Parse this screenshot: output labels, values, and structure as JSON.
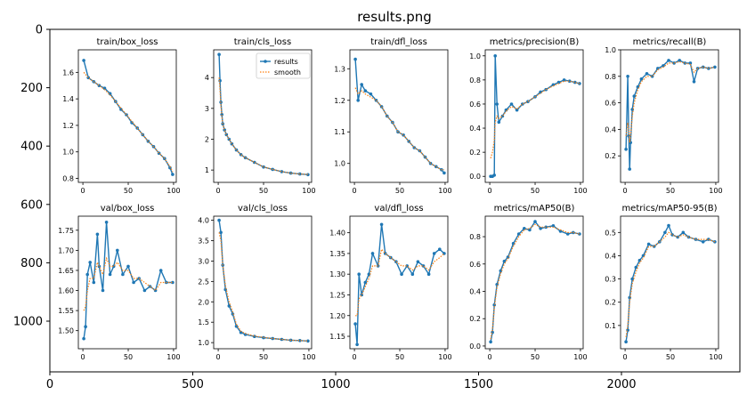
{
  "figure": {
    "title": "results.png",
    "outer_x_ticks": [
      "0",
      "500",
      "1000",
      "1500",
      "2000"
    ],
    "outer_y_ticks": [
      "0",
      "200",
      "400",
      "600",
      "800",
      "1000"
    ]
  },
  "colors": {
    "results": "#1f77b4",
    "smooth": "#ff7f0e"
  },
  "chart_data": [
    {
      "type": "line",
      "title": "train/box_loss",
      "xlim": [
        -5,
        103
      ],
      "ylim": [
        0.77,
        1.77
      ],
      "x_ticks": [
        0,
        50,
        100
      ],
      "y_ticks": [
        0.8,
        1.0,
        1.2,
        1.4,
        1.6
      ],
      "x": [
        1,
        6,
        12,
        18,
        24,
        30,
        36,
        42,
        48,
        54,
        60,
        66,
        72,
        78,
        84,
        90,
        96,
        99
      ],
      "series": [
        {
          "name": "results",
          "values": [
            1.69,
            1.56,
            1.53,
            1.5,
            1.48,
            1.44,
            1.38,
            1.32,
            1.28,
            1.22,
            1.18,
            1.13,
            1.08,
            1.04,
            0.99,
            0.95,
            0.88,
            0.83
          ]
        },
        {
          "name": "smooth",
          "values": [
            1.6,
            1.56,
            1.53,
            1.5,
            1.47,
            1.43,
            1.38,
            1.33,
            1.28,
            1.23,
            1.18,
            1.13,
            1.08,
            1.04,
            0.99,
            0.95,
            0.89,
            0.85
          ]
        }
      ]
    },
    {
      "type": "line",
      "title": "train/cls_loss",
      "legend": {
        "placement": "top-right",
        "entries": [
          "results",
          "smooth"
        ]
      },
      "xlim": [
        -5,
        103
      ],
      "ylim": [
        0.6,
        4.9
      ],
      "x_ticks": [
        0,
        50,
        100
      ],
      "y_ticks": [
        1,
        2,
        3,
        4
      ],
      "x": [
        1,
        2,
        3,
        4,
        5,
        7,
        9,
        12,
        15,
        20,
        25,
        30,
        40,
        50,
        60,
        70,
        80,
        90,
        99
      ],
      "series": [
        {
          "name": "results",
          "values": [
            4.75,
            3.9,
            3.2,
            2.8,
            2.5,
            2.3,
            2.15,
            2.0,
            1.85,
            1.65,
            1.5,
            1.4,
            1.25,
            1.1,
            1.02,
            0.95,
            0.9,
            0.87,
            0.85
          ]
        },
        {
          "name": "smooth",
          "values": [
            4.0,
            3.6,
            3.1,
            2.75,
            2.5,
            2.3,
            2.15,
            2.0,
            1.85,
            1.65,
            1.5,
            1.4,
            1.25,
            1.1,
            1.02,
            0.95,
            0.9,
            0.87,
            0.86
          ]
        }
      ]
    },
    {
      "type": "line",
      "title": "train/dfl_loss",
      "xlim": [
        -5,
        103
      ],
      "ylim": [
        0.94,
        1.36
      ],
      "x_ticks": [
        0,
        50,
        100
      ],
      "y_ticks": [
        1.0,
        1.1,
        1.2,
        1.3
      ],
      "x": [
        1,
        4,
        8,
        12,
        18,
        24,
        30,
        36,
        42,
        48,
        54,
        60,
        66,
        72,
        78,
        84,
        90,
        96,
        99
      ],
      "series": [
        {
          "name": "results",
          "values": [
            1.33,
            1.2,
            1.25,
            1.23,
            1.22,
            1.2,
            1.18,
            1.15,
            1.13,
            1.1,
            1.09,
            1.07,
            1.05,
            1.04,
            1.02,
            1.0,
            0.99,
            0.98,
            0.97
          ]
        },
        {
          "name": "smooth",
          "values": [
            1.24,
            1.22,
            1.23,
            1.22,
            1.21,
            1.2,
            1.18,
            1.15,
            1.13,
            1.1,
            1.09,
            1.07,
            1.05,
            1.04,
            1.02,
            1.0,
            0.99,
            0.98,
            0.98
          ]
        }
      ]
    },
    {
      "type": "line",
      "title": "metrics/precision(B)",
      "xlim": [
        -5,
        103
      ],
      "ylim": [
        -0.05,
        1.05
      ],
      "x_ticks": [
        0,
        50,
        100
      ],
      "y_ticks": [
        0.0,
        0.2,
        0.4,
        0.6,
        0.8,
        1.0
      ],
      "x": [
        1,
        3,
        5,
        6,
        8,
        10,
        14,
        18,
        24,
        30,
        36,
        42,
        50,
        56,
        62,
        70,
        76,
        82,
        88,
        94,
        99
      ],
      "series": [
        {
          "name": "results",
          "values": [
            0.0,
            0.0,
            0.01,
            1.0,
            0.6,
            0.45,
            0.5,
            0.55,
            0.6,
            0.55,
            0.6,
            0.62,
            0.66,
            0.7,
            0.72,
            0.76,
            0.78,
            0.8,
            0.79,
            0.78,
            0.77
          ]
        },
        {
          "name": "smooth",
          "values": [
            0.15,
            0.2,
            0.3,
            0.45,
            0.5,
            0.48,
            0.5,
            0.54,
            0.58,
            0.56,
            0.6,
            0.62,
            0.66,
            0.69,
            0.72,
            0.75,
            0.77,
            0.79,
            0.79,
            0.78,
            0.77
          ]
        }
      ]
    },
    {
      "type": "line",
      "title": "metrics/recall(B)",
      "xlim": [
        -5,
        103
      ],
      "ylim": [
        0.0,
        1.0
      ],
      "x_ticks": [
        0,
        50,
        100
      ],
      "y_ticks": [
        0.2,
        0.4,
        0.6,
        0.8,
        1.0
      ],
      "x": [
        1,
        3,
        4,
        5,
        6,
        8,
        10,
        14,
        18,
        24,
        30,
        36,
        42,
        48,
        54,
        60,
        66,
        72,
        76,
        80,
        86,
        92,
        99
      ],
      "series": [
        {
          "name": "results",
          "values": [
            0.25,
            0.8,
            0.35,
            0.1,
            0.3,
            0.55,
            0.65,
            0.72,
            0.78,
            0.82,
            0.8,
            0.86,
            0.88,
            0.92,
            0.9,
            0.92,
            0.9,
            0.9,
            0.76,
            0.86,
            0.87,
            0.86,
            0.87
          ]
        },
        {
          "name": "smooth",
          "values": [
            0.35,
            0.45,
            0.4,
            0.3,
            0.35,
            0.5,
            0.6,
            0.7,
            0.76,
            0.8,
            0.8,
            0.85,
            0.87,
            0.9,
            0.9,
            0.91,
            0.9,
            0.89,
            0.83,
            0.86,
            0.87,
            0.86,
            0.87
          ]
        }
      ]
    },
    {
      "type": "line",
      "title": "val/box_loss",
      "xlim": [
        -5,
        103
      ],
      "ylim": [
        1.455,
        1.785
      ],
      "x_ticks": [
        0,
        50,
        100
      ],
      "y_ticks": [
        1.5,
        1.55,
        1.6,
        1.65,
        1.7,
        1.75
      ],
      "x": [
        1,
        3,
        5,
        8,
        12,
        16,
        18,
        22,
        26,
        30,
        34,
        38,
        44,
        50,
        56,
        62,
        68,
        74,
        80,
        86,
        92,
        99
      ],
      "series": [
        {
          "name": "results",
          "values": [
            1.48,
            1.51,
            1.64,
            1.67,
            1.62,
            1.74,
            1.66,
            1.6,
            1.77,
            1.64,
            1.66,
            1.7,
            1.64,
            1.66,
            1.62,
            1.63,
            1.6,
            1.61,
            1.6,
            1.65,
            1.62,
            1.62
          ]
        },
        {
          "name": "smooth",
          "values": [
            1.55,
            1.56,
            1.6,
            1.63,
            1.63,
            1.67,
            1.66,
            1.64,
            1.68,
            1.66,
            1.66,
            1.67,
            1.65,
            1.65,
            1.63,
            1.63,
            1.62,
            1.61,
            1.6,
            1.62,
            1.62,
            1.62
          ]
        }
      ]
    },
    {
      "type": "line",
      "title": "val/cls_loss",
      "xlim": [
        -5,
        103
      ],
      "ylim": [
        0.85,
        4.1
      ],
      "x_ticks": [
        0,
        50,
        100
      ],
      "y_ticks": [
        1.0,
        1.5,
        2.0,
        2.5,
        3.0,
        3.5,
        4.0
      ],
      "x": [
        1,
        3,
        5,
        8,
        12,
        16,
        20,
        25,
        30,
        40,
        50,
        60,
        70,
        80,
        90,
        99
      ],
      "series": [
        {
          "name": "results",
          "values": [
            4.0,
            3.7,
            2.9,
            2.3,
            1.9,
            1.7,
            1.4,
            1.25,
            1.2,
            1.15,
            1.12,
            1.1,
            1.08,
            1.06,
            1.05,
            1.04
          ]
        },
        {
          "name": "smooth",
          "values": [
            3.7,
            3.5,
            2.9,
            2.4,
            2.0,
            1.75,
            1.45,
            1.28,
            1.22,
            1.16,
            1.13,
            1.1,
            1.08,
            1.06,
            1.05,
            1.04
          ]
        }
      ]
    },
    {
      "type": "line",
      "title": "val/dfl_loss",
      "xlim": [
        -5,
        103
      ],
      "ylim": [
        1.12,
        1.44
      ],
      "x_ticks": [
        0,
        50,
        100
      ],
      "y_ticks": [
        1.15,
        1.2,
        1.25,
        1.3,
        1.35,
        1.4
      ],
      "x": [
        1,
        3,
        5,
        8,
        12,
        16,
        20,
        26,
        30,
        34,
        40,
        46,
        52,
        58,
        64,
        70,
        76,
        82,
        88,
        94,
        99
      ],
      "series": [
        {
          "name": "results",
          "values": [
            1.18,
            1.13,
            1.3,
            1.25,
            1.28,
            1.3,
            1.35,
            1.32,
            1.42,
            1.35,
            1.34,
            1.33,
            1.3,
            1.32,
            1.3,
            1.33,
            1.32,
            1.3,
            1.35,
            1.36,
            1.35
          ]
        },
        {
          "name": "smooth",
          "values": [
            1.2,
            1.2,
            1.24,
            1.25,
            1.27,
            1.29,
            1.32,
            1.32,
            1.36,
            1.35,
            1.34,
            1.33,
            1.32,
            1.32,
            1.31,
            1.32,
            1.32,
            1.31,
            1.33,
            1.34,
            1.35
          ]
        }
      ]
    },
    {
      "type": "line",
      "title": "metrics/mAP50(B)",
      "xlim": [
        -5,
        103
      ],
      "ylim": [
        -0.02,
        0.95
      ],
      "x_ticks": [
        0,
        50,
        100
      ],
      "y_ticks": [
        0.0,
        0.2,
        0.4,
        0.6,
        0.8
      ],
      "x": [
        1,
        3,
        5,
        8,
        12,
        16,
        20,
        26,
        32,
        38,
        44,
        50,
        56,
        62,
        70,
        78,
        86,
        92,
        99
      ],
      "series": [
        {
          "name": "results",
          "values": [
            0.03,
            0.1,
            0.3,
            0.45,
            0.55,
            0.62,
            0.65,
            0.75,
            0.82,
            0.86,
            0.85,
            0.91,
            0.86,
            0.87,
            0.88,
            0.84,
            0.82,
            0.83,
            0.82
          ]
        },
        {
          "name": "smooth",
          "values": [
            0.05,
            0.12,
            0.28,
            0.43,
            0.53,
            0.6,
            0.64,
            0.73,
            0.8,
            0.85,
            0.86,
            0.89,
            0.87,
            0.87,
            0.87,
            0.85,
            0.83,
            0.83,
            0.82
          ]
        }
      ]
    },
    {
      "type": "line",
      "title": "metrics/mAP50-95(B)",
      "xlim": [
        -5,
        103
      ],
      "ylim": [
        0.0,
        0.57
      ],
      "x_ticks": [
        0,
        50,
        100
      ],
      "y_ticks": [
        0.1,
        0.2,
        0.3,
        0.4,
        0.5
      ],
      "x": [
        1,
        3,
        5,
        8,
        12,
        16,
        20,
        26,
        32,
        38,
        44,
        48,
        52,
        58,
        64,
        70,
        78,
        86,
        92,
        99
      ],
      "series": [
        {
          "name": "results",
          "values": [
            0.03,
            0.08,
            0.22,
            0.3,
            0.35,
            0.38,
            0.4,
            0.45,
            0.44,
            0.46,
            0.5,
            0.53,
            0.49,
            0.48,
            0.5,
            0.48,
            0.47,
            0.46,
            0.47,
            0.46
          ]
        },
        {
          "name": "smooth",
          "values": [
            0.05,
            0.1,
            0.2,
            0.28,
            0.33,
            0.37,
            0.39,
            0.44,
            0.44,
            0.46,
            0.48,
            0.5,
            0.49,
            0.48,
            0.49,
            0.48,
            0.47,
            0.47,
            0.47,
            0.46
          ]
        }
      ]
    }
  ]
}
